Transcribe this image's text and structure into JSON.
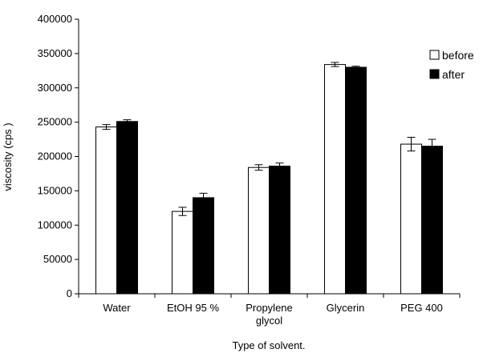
{
  "chart_data": {
    "type": "bar",
    "title": "",
    "xlabel": "Type of solvent.",
    "ylabel": "viscosity (cps )",
    "categories": [
      "Water",
      "EtOH 95 %",
      "Propylene glycol",
      "Glycerin",
      "PEG 400"
    ],
    "category_label_lines": [
      [
        "Water"
      ],
      [
        "EtOH 95 %"
      ],
      [
        "Propylene",
        "glycol"
      ],
      [
        "Glycerin"
      ],
      [
        "PEG 400"
      ]
    ],
    "ylim": [
      0,
      400000
    ],
    "yticks": [
      0,
      50000,
      100000,
      150000,
      200000,
      250000,
      300000,
      350000,
      400000
    ],
    "ytick_labels": [
      "0",
      "50000",
      "100000",
      "150000",
      "200000",
      "250000",
      "300000",
      "350000",
      "400000"
    ],
    "grid": false,
    "legend_position": "top-right",
    "series": [
      {
        "name": "before",
        "color": "#ffffff",
        "values": [
          243000,
          120000,
          184000,
          334000,
          218000
        ],
        "errors": [
          3500,
          6000,
          4000,
          3000,
          10000
        ]
      },
      {
        "name": "after",
        "color": "#000000",
        "values": [
          251000,
          140000,
          186000,
          330000,
          215000
        ],
        "errors": [
          2500,
          6500,
          4500,
          1500,
          10000
        ]
      }
    ]
  }
}
